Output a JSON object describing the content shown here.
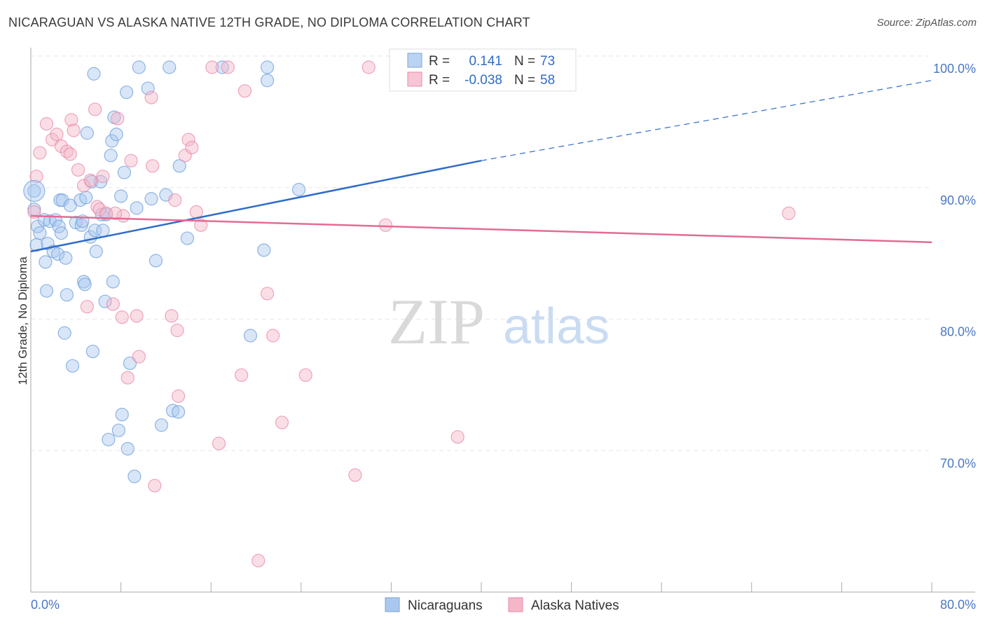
{
  "title": "NICARAGUAN VS ALASKA NATIVE 12TH GRADE, NO DIPLOMA CORRELATION CHART",
  "source": "Source: ZipAtlas.com",
  "watermark": {
    "zip": "ZIP",
    "atlas": "atlas"
  },
  "chart_data": {
    "type": "scatter",
    "title": "NICARAGUAN VS ALASKA NATIVE 12TH GRADE, NO DIPLOMA CORRELATION CHART",
    "xlabel": "",
    "ylabel": "12th Grade, No Diploma",
    "xlim": [
      0,
      80
    ],
    "ylim": [
      60,
      100
    ],
    "x_ticks": [
      "0.0%",
      "80.0%"
    ],
    "y_ticks": [
      {
        "value": 100,
        "label": "100.0%"
      },
      {
        "value": 90,
        "label": "90.0%"
      },
      {
        "value": 80,
        "label": "80.0%"
      },
      {
        "value": 70,
        "label": "70.0%"
      }
    ],
    "grid": true,
    "legend_placement": "top-center",
    "colors": {
      "nicaraguans": "#a9c8ef",
      "nicaraguans_line": "#2f6cc8",
      "alaska": "#f5b6c8",
      "alaska_line": "#e46b94"
    },
    "stats": [
      {
        "r_label": "R =",
        "r": "0.141",
        "n_label": "N =",
        "n": "73"
      },
      {
        "r_label": "R =",
        "r": "-0.038",
        "n_label": "N =",
        "n": "58"
      }
    ],
    "series": [
      {
        "name": "Nicaraguans",
        "trend": {
          "x0": 0,
          "y0": 86.0,
          "x1": 40,
          "y1": 92.9,
          "dash_to_x": 80,
          "dash_to_y": 99.0
        },
        "points": [
          [
            0.3,
            90.6
          ],
          [
            0.3,
            89.2
          ],
          [
            0.5,
            86.5
          ],
          [
            0.6,
            87.9
          ],
          [
            0.8,
            87.4
          ],
          [
            1.2,
            88.4
          ],
          [
            1.3,
            85.2
          ],
          [
            1.4,
            83.0
          ],
          [
            1.5,
            86.6
          ],
          [
            1.7,
            88.3
          ],
          [
            2.0,
            86.0
          ],
          [
            2.2,
            88.4
          ],
          [
            2.4,
            85.8
          ],
          [
            2.5,
            87.9
          ],
          [
            2.6,
            89.9
          ],
          [
            2.7,
            87.4
          ],
          [
            2.8,
            89.9
          ],
          [
            3.0,
            79.8
          ],
          [
            3.1,
            85.5
          ],
          [
            3.2,
            82.7
          ],
          [
            3.5,
            89.5
          ],
          [
            3.7,
            77.3
          ],
          [
            4.0,
            88.2
          ],
          [
            4.4,
            89.9
          ],
          [
            4.5,
            88.0
          ],
          [
            4.6,
            88.3
          ],
          [
            4.7,
            83.7
          ],
          [
            4.8,
            83.5
          ],
          [
            4.9,
            90.1
          ],
          [
            5.0,
            95.0
          ],
          [
            5.3,
            87.1
          ],
          [
            5.4,
            91.3
          ],
          [
            5.5,
            78.4
          ],
          [
            5.6,
            99.5
          ],
          [
            5.7,
            87.6
          ],
          [
            5.8,
            86.0
          ],
          [
            6.2,
            91.3
          ],
          [
            6.3,
            88.8
          ],
          [
            6.4,
            87.6
          ],
          [
            6.6,
            82.2
          ],
          [
            6.7,
            88.8
          ],
          [
            6.9,
            71.7
          ],
          [
            7.1,
            93.3
          ],
          [
            7.2,
            94.4
          ],
          [
            7.3,
            83.7
          ],
          [
            7.4,
            96.2
          ],
          [
            7.6,
            94.9
          ],
          [
            7.8,
            72.4
          ],
          [
            8.0,
            90.2
          ],
          [
            8.1,
            73.6
          ],
          [
            8.3,
            92.0
          ],
          [
            8.5,
            98.1
          ],
          [
            8.6,
            71.0
          ],
          [
            8.8,
            77.5
          ],
          [
            9.2,
            68.9
          ],
          [
            9.4,
            89.3
          ],
          [
            9.6,
            100.0
          ],
          [
            10.4,
            98.4
          ],
          [
            10.7,
            90.0
          ],
          [
            11.1,
            85.3
          ],
          [
            11.6,
            72.8
          ],
          [
            12.0,
            90.3
          ],
          [
            12.3,
            100.0
          ],
          [
            12.6,
            73.9
          ],
          [
            13.1,
            73.8
          ],
          [
            13.2,
            92.5
          ],
          [
            13.9,
            87.0
          ],
          [
            17.0,
            100.0
          ],
          [
            19.5,
            79.6
          ],
          [
            20.7,
            86.1
          ],
          [
            21.0,
            100.0
          ],
          [
            23.8,
            90.7
          ],
          [
            21.0,
            99.0
          ]
        ]
      },
      {
        "name": "Alaska Natives",
        "trend": {
          "x0": 0,
          "y0": 88.7,
          "x1": 80,
          "y1": 86.7
        },
        "points": [
          [
            0.3,
            89.0
          ],
          [
            0.5,
            91.7
          ],
          [
            0.8,
            93.5
          ],
          [
            1.4,
            95.7
          ],
          [
            1.9,
            94.5
          ],
          [
            2.3,
            94.9
          ],
          [
            2.7,
            94.0
          ],
          [
            3.2,
            93.6
          ],
          [
            3.6,
            96.0
          ],
          [
            3.8,
            95.2
          ],
          [
            4.2,
            92.2
          ],
          [
            4.7,
            91.0
          ],
          [
            5.0,
            81.8
          ],
          [
            5.3,
            91.4
          ],
          [
            5.7,
            96.8
          ],
          [
            5.9,
            89.4
          ],
          [
            6.1,
            89.2
          ],
          [
            6.4,
            91.7
          ],
          [
            6.7,
            88.9
          ],
          [
            7.3,
            82.0
          ],
          [
            7.7,
            96.1
          ],
          [
            8.1,
            81.0
          ],
          [
            8.2,
            88.7
          ],
          [
            8.6,
            76.4
          ],
          [
            8.9,
            92.9
          ],
          [
            9.4,
            81.1
          ],
          [
            9.6,
            78.0
          ],
          [
            10.7,
            97.7
          ],
          [
            10.8,
            92.5
          ],
          [
            11.0,
            68.2
          ],
          [
            12.5,
            81.1
          ],
          [
            12.8,
            89.9
          ],
          [
            13.1,
            75.0
          ],
          [
            13.7,
            93.3
          ],
          [
            14.0,
            94.5
          ],
          [
            14.3,
            93.9
          ],
          [
            14.7,
            89.0
          ],
          [
            15.1,
            88.0
          ],
          [
            16.1,
            100.0
          ],
          [
            16.7,
            71.4
          ],
          [
            17.5,
            100.0
          ],
          [
            18.7,
            76.6
          ],
          [
            19.0,
            98.2
          ],
          [
            20.2,
            62.5
          ],
          [
            21.0,
            82.8
          ],
          [
            21.5,
            79.6
          ],
          [
            22.3,
            73.0
          ],
          [
            24.4,
            76.6
          ],
          [
            28.8,
            69.0
          ],
          [
            30.0,
            100.0
          ],
          [
            31.5,
            88.0
          ],
          [
            37.9,
            71.9
          ],
          [
            41.7,
            100.0
          ],
          [
            43.5,
            100.0
          ],
          [
            67.3,
            88.9
          ],
          [
            3.5,
            93.4
          ],
          [
            7.5,
            88.9
          ],
          [
            13.0,
            80.0
          ]
        ]
      }
    ]
  }
}
